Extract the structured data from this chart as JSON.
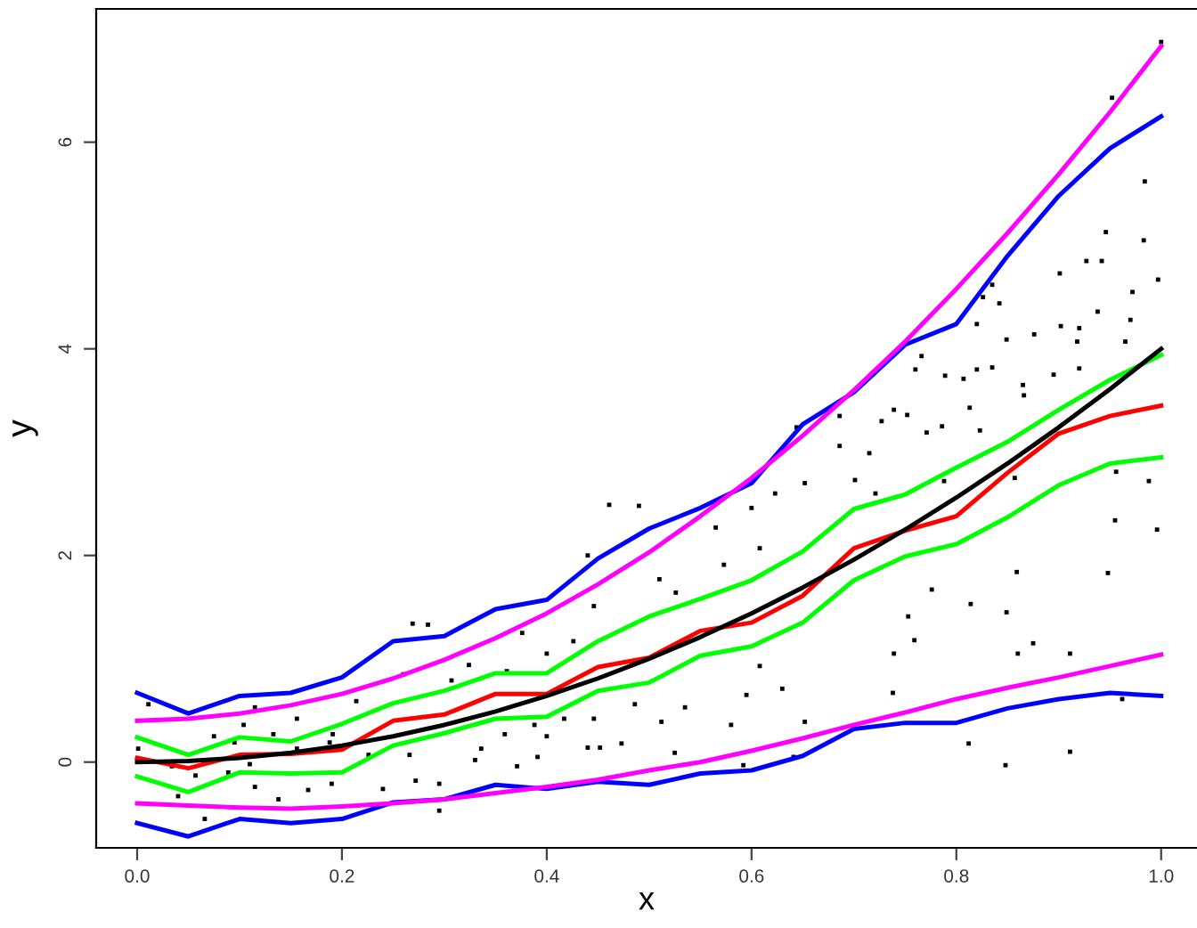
{
  "chart_data": {
    "type": "line",
    "xlabel": "x",
    "ylabel": "y",
    "xlim": [
      -0.04,
      1.035
    ],
    "ylim": [
      -0.83,
      7.29
    ],
    "xticks": [
      {
        "value": 0,
        "label": "0.0"
      },
      0.2,
      0.4,
      0.6,
      0.8,
      {
        "value": 1,
        "label": "1.0"
      }
    ],
    "yticks": [
      0,
      2,
      4,
      6
    ],
    "grid": false,
    "legend": false,
    "series": [
      {
        "type": "scatter",
        "marker": "square",
        "color": "#000000",
        "x": [
          1.0,
          0.952,
          0.984,
          0.946,
          0.983,
          0.927,
          0.942,
          0.901,
          0.997,
          0.972,
          0.826,
          0.835,
          0.842,
          0.82,
          0.938,
          0.902,
          0.92,
          0.97,
          0.876,
          0.849,
          0.918,
          0.965,
          0.766,
          0.76,
          0.789,
          0.807,
          0.82,
          0.835,
          0.895,
          0.92,
          0.865,
          0.866,
          0.813,
          0.739,
          0.727,
          0.752,
          0.686,
          0.771,
          0.786,
          0.823,
          0.644,
          0.686,
          0.715,
          0.461,
          0.49,
          0.565,
          0.6,
          0.652,
          0.701,
          0.721,
          0.788,
          0.857,
          0.956,
          0.988,
          0.955,
          0.996,
          0.948,
          0.859,
          0.776,
          0.814,
          0.849,
          0.753,
          0.759,
          0.739,
          0.86,
          0.875,
          0.911,
          0.738,
          0.812,
          0.848,
          0.911,
          0.962,
          0.652,
          0.641,
          0.592,
          0.525,
          0.473,
          0.452,
          0.58,
          0.512,
          0.486,
          0.535,
          0.595,
          0.63,
          0.608,
          0.573,
          0.608,
          0.623,
          0.526,
          0.51,
          0.269,
          0.284,
          0.361,
          0.376,
          0.446,
          0.44,
          0.426,
          0.4,
          0.307,
          0.324,
          0.26,
          0.214,
          0.156,
          0.115,
          0.104,
          0.095,
          0.075,
          0.011,
          0.001,
          0.034,
          0.057,
          0.04,
          0.066,
          0.115,
          0.138,
          0.167,
          0.19,
          0.24,
          0.272,
          0.295,
          0.295,
          0.33,
          0.359,
          0.388,
          0.4,
          0.417,
          0.391,
          0.371,
          0.336,
          0.266,
          0.226,
          0.188,
          0.156,
          0.133,
          0.11,
          0.089,
          0.191,
          0.44,
          0.446
        ],
        "values": [
          6.97,
          6.43,
          5.62,
          5.13,
          5.05,
          4.85,
          4.85,
          4.73,
          4.67,
          4.55,
          4.5,
          4.62,
          4.44,
          4.24,
          4.36,
          4.22,
          4.2,
          4.28,
          4.14,
          4.09,
          4.07,
          4.07,
          3.93,
          3.8,
          3.74,
          3.71,
          3.8,
          3.82,
          3.75,
          3.81,
          3.65,
          3.55,
          3.43,
          3.41,
          3.3,
          3.36,
          3.35,
          3.19,
          3.25,
          3.21,
          3.24,
          3.06,
          2.99,
          2.49,
          2.48,
          2.27,
          2.46,
          2.7,
          2.73,
          2.6,
          2.72,
          2.75,
          2.81,
          2.72,
          2.34,
          2.25,
          1.83,
          1.84,
          1.67,
          1.53,
          1.45,
          1.41,
          1.18,
          1.05,
          1.05,
          1.15,
          1.05,
          0.67,
          0.18,
          -0.03,
          0.1,
          0.61,
          0.39,
          0.05,
          -0.03,
          0.09,
          0.18,
          0.14,
          0.36,
          0.39,
          0.56,
          0.53,
          0.65,
          0.71,
          0.93,
          1.91,
          2.07,
          2.6,
          1.64,
          1.77,
          1.34,
          1.33,
          0.88,
          1.25,
          1.51,
          2.0,
          1.17,
          1.05,
          0.79,
          0.94,
          0.85,
          0.59,
          0.42,
          0.53,
          0.36,
          0.19,
          0.25,
          0.56,
          0.13,
          -0.04,
          -0.13,
          -0.33,
          -0.55,
          -0.24,
          -0.36,
          -0.27,
          -0.21,
          -0.26,
          -0.18,
          -0.47,
          -0.21,
          0.02,
          0.27,
          0.36,
          0.25,
          0.42,
          0.05,
          -0.04,
          0.13,
          0.07,
          0.07,
          0.19,
          0.13,
          0.27,
          -0.02,
          -0.1,
          0.27,
          0.14,
          0.42
        ]
      },
      {
        "color": "#0000ff",
        "x": [
          0,
          0.05,
          0.1,
          0.15,
          0.2,
          0.25,
          0.3,
          0.35,
          0.4,
          0.45,
          0.5,
          0.55,
          0.6,
          0.65,
          0.7,
          0.75,
          0.8,
          0.85,
          0.9,
          0.95,
          1.0
        ],
        "values": [
          0.67,
          0.47,
          0.64,
          0.67,
          0.82,
          1.17,
          1.22,
          1.48,
          1.57,
          1.97,
          2.26,
          2.46,
          2.7,
          3.27,
          3.58,
          4.04,
          4.24,
          4.9,
          5.48,
          5.94,
          6.25
        ]
      },
      {
        "color": "#0000ff",
        "x": [
          0,
          0.05,
          0.1,
          0.15,
          0.2,
          0.25,
          0.3,
          0.35,
          0.4,
          0.45,
          0.5,
          0.55,
          0.6,
          0.65,
          0.7,
          0.75,
          0.8,
          0.85,
          0.9,
          0.95,
          1.0
        ],
        "values": [
          -0.59,
          -0.72,
          -0.55,
          -0.59,
          -0.55,
          -0.39,
          -0.36,
          -0.22,
          -0.26,
          -0.19,
          -0.22,
          -0.11,
          -0.08,
          0.06,
          0.32,
          0.38,
          0.38,
          0.52,
          0.61,
          0.67,
          0.64
        ]
      },
      {
        "color": "#ff00ff",
        "x": [
          0,
          0.05,
          0.1,
          0.15,
          0.2,
          0.25,
          0.3,
          0.35,
          0.4,
          0.45,
          0.5,
          0.55,
          0.6,
          0.65,
          0.7,
          0.75,
          0.8,
          0.85,
          0.9,
          0.95,
          1.0
        ],
        "values": [
          0.4,
          0.42,
          0.47,
          0.55,
          0.66,
          0.81,
          0.99,
          1.2,
          1.44,
          1.72,
          2.03,
          2.38,
          2.75,
          3.16,
          3.6,
          4.07,
          4.58,
          5.12,
          5.69,
          6.29,
          6.93
        ]
      },
      {
        "color": "#ff00ff",
        "x": [
          0,
          0.05,
          0.1,
          0.15,
          0.2,
          0.25,
          0.3,
          0.35,
          0.4,
          0.45,
          0.5,
          0.55,
          0.6,
          0.65,
          0.7,
          0.75,
          0.8,
          0.85,
          0.9,
          0.95,
          1.0
        ],
        "values": [
          -0.4,
          -0.42,
          -0.44,
          -0.45,
          -0.43,
          -0.4,
          -0.36,
          -0.3,
          -0.24,
          -0.17,
          -0.08,
          0.0,
          0.11,
          0.23,
          0.36,
          0.48,
          0.61,
          0.72,
          0.82,
          0.93,
          1.04
        ]
      },
      {
        "color": "#00ff00",
        "x": [
          0,
          0.05,
          0.1,
          0.15,
          0.2,
          0.25,
          0.3,
          0.35,
          0.4,
          0.45,
          0.5,
          0.55,
          0.6,
          0.65,
          0.7,
          0.75,
          0.8,
          0.85,
          0.9,
          0.95,
          1.0
        ],
        "values": [
          0.24,
          0.07,
          0.24,
          0.2,
          0.37,
          0.57,
          0.69,
          0.86,
          0.86,
          1.17,
          1.41,
          1.58,
          1.76,
          2.04,
          2.45,
          2.59,
          2.85,
          3.1,
          3.41,
          3.7,
          3.94
        ]
      },
      {
        "color": "#00ff00",
        "x": [
          0,
          0.05,
          0.1,
          0.15,
          0.2,
          0.25,
          0.3,
          0.35,
          0.4,
          0.45,
          0.5,
          0.55,
          0.6,
          0.65,
          0.7,
          0.75,
          0.8,
          0.85,
          0.9,
          0.95,
          1.0
        ],
        "values": [
          -0.14,
          -0.29,
          -0.1,
          -0.11,
          -0.1,
          0.16,
          0.28,
          0.42,
          0.44,
          0.69,
          0.77,
          1.03,
          1.12,
          1.35,
          1.76,
          1.99,
          2.11,
          2.37,
          2.68,
          2.89,
          2.95
        ]
      },
      {
        "color": "#ff0000",
        "x": [
          0,
          0.05,
          0.1,
          0.15,
          0.2,
          0.25,
          0.3,
          0.35,
          0.4,
          0.45,
          0.5,
          0.55,
          0.6,
          0.65,
          0.7,
          0.75,
          0.8,
          0.85,
          0.9,
          0.95,
          1.0
        ],
        "values": [
          0.04,
          -0.06,
          0.07,
          0.08,
          0.12,
          0.4,
          0.46,
          0.66,
          0.66,
          0.92,
          1.01,
          1.27,
          1.35,
          1.61,
          2.07,
          2.24,
          2.38,
          2.8,
          3.18,
          3.35,
          3.45
        ]
      },
      {
        "color": "#000000",
        "x": [
          0,
          0.05,
          0.1,
          0.15,
          0.2,
          0.25,
          0.3,
          0.35,
          0.4,
          0.45,
          0.5,
          0.55,
          0.6,
          0.65,
          0.7,
          0.75,
          0.8,
          0.85,
          0.9,
          0.95,
          1.0
        ],
        "values": [
          0,
          0.01,
          0.04,
          0.09,
          0.16,
          0.25,
          0.36,
          0.49,
          0.64,
          0.81,
          1.0,
          1.21,
          1.44,
          1.69,
          1.96,
          2.25,
          2.56,
          2.89,
          3.24,
          3.61,
          4.0
        ]
      }
    ]
  }
}
